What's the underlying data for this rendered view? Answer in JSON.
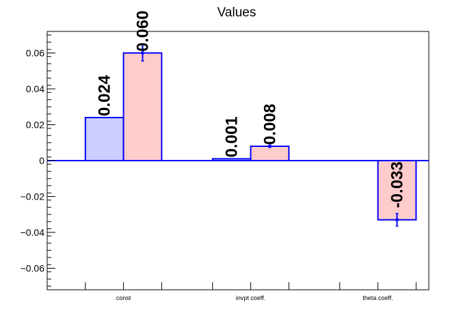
{
  "chart_data": {
    "type": "bar",
    "title": "Values",
    "xlabel": "",
    "ylabel": "",
    "ylim": [
      -0.072,
      0.072
    ],
    "yticks": [
      -0.06,
      -0.04,
      -0.02,
      0,
      0.02,
      0.04,
      0.06
    ],
    "ytick_labels": [
      "−0.06",
      "−0.04",
      "−0.02",
      "0",
      "0.02",
      "0.04",
      "0.06"
    ],
    "categories": [
      "const",
      "invpt coeff.",
      "theta coeff."
    ],
    "series": [
      {
        "color": "#ccccff",
        "values": [
          0.024,
          0.001,
          null
        ],
        "errors": [
          null,
          null,
          null
        ],
        "labels": [
          "0.024",
          "0.001",
          ""
        ]
      },
      {
        "color": "#ffcccc",
        "values": [
          0.06,
          0.008,
          -0.033
        ],
        "errors": [
          0.0045,
          0.0007,
          0.0035
        ],
        "labels": [
          "0.060",
          "0.008",
          "-0.033"
        ]
      }
    ],
    "zero_line_color": "#0000ff",
    "bar_edge_color": "#0000ff",
    "grid": false
  }
}
